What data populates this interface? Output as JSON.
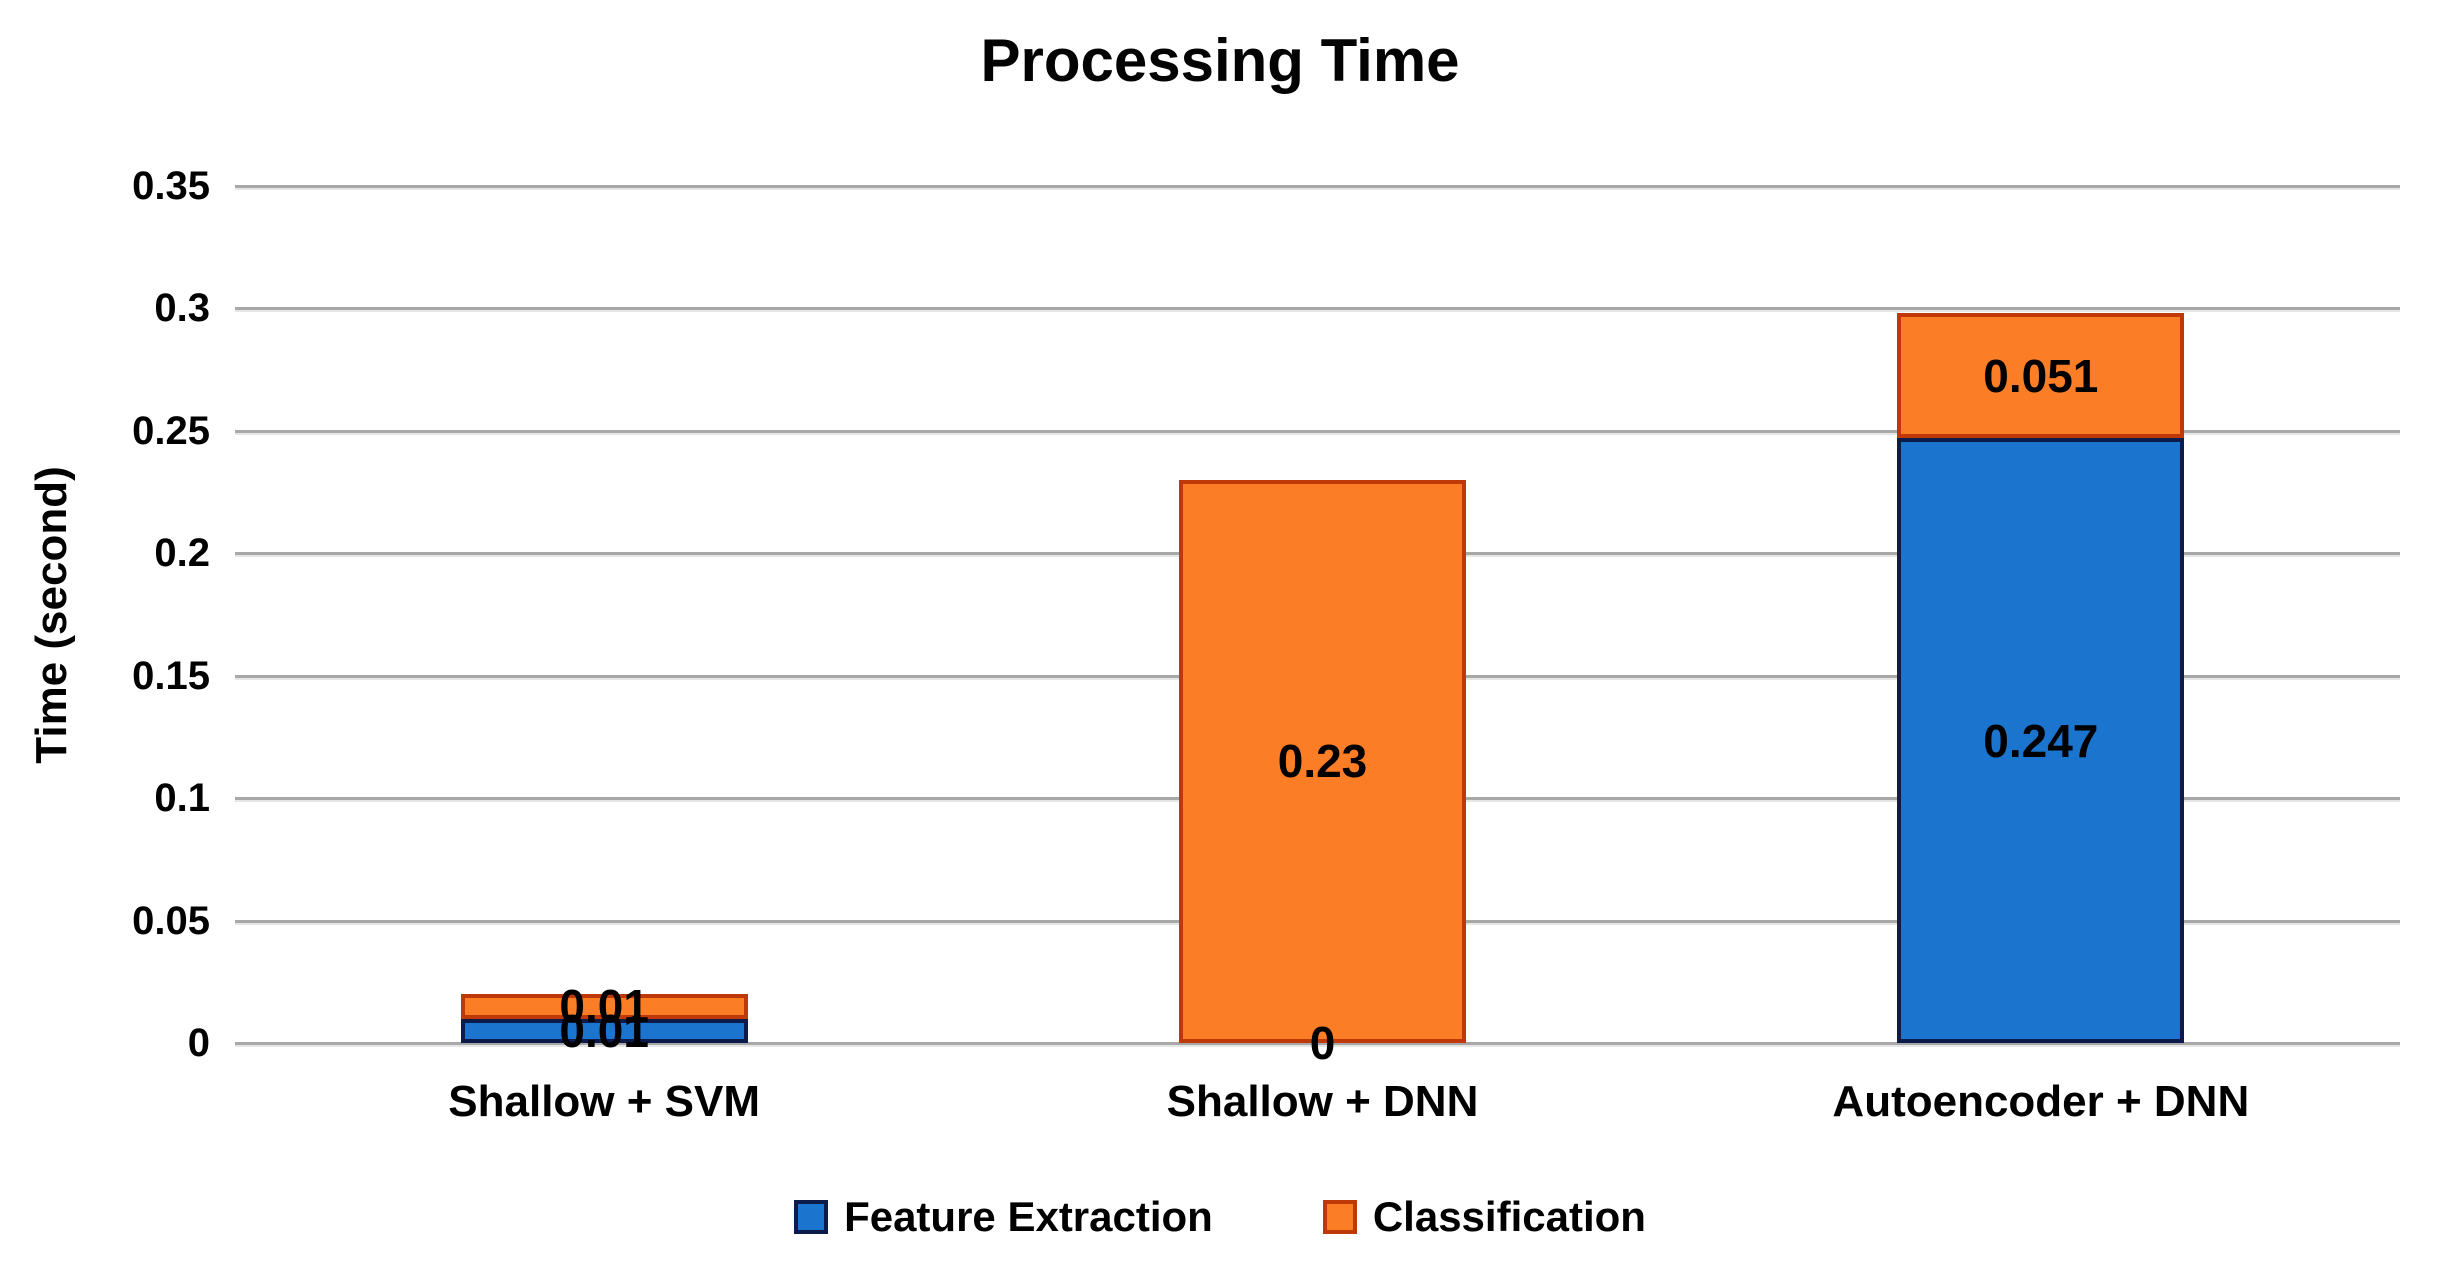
{
  "title": "Processing Time",
  "y_axis": {
    "label": "Time (second)",
    "ticks": [
      "0.35",
      "0.3",
      "0.25",
      "0.2",
      "0.15",
      "0.1",
      "0.05",
      "0"
    ]
  },
  "legend": {
    "items": [
      {
        "label": "Feature Extraction",
        "color": "#1B74CE",
        "border_color": "#0D1B4A"
      },
      {
        "label": "Classification",
        "color": "#FB7E26",
        "border_color": "#BE3808"
      }
    ]
  },
  "chart_data": {
    "type": "bar",
    "stacked": true,
    "title": "Processing Time",
    "xlabel": "",
    "ylabel": "Time (second)",
    "categories": [
      "Shallow + SVM",
      "Shallow + DNN",
      "Autoencoder + DNN"
    ],
    "series": [
      {
        "name": "Feature Extraction",
        "color": "#1B74CE",
        "border_color": "#0D1B4A",
        "values": [
          0.01,
          0,
          0.247
        ],
        "data_labels": [
          "0.01",
          "0",
          "0.247"
        ]
      },
      {
        "name": "Classification",
        "color": "#FB7E26",
        "border_color": "#BE3808",
        "values": [
          0.01,
          0.23,
          0.051
        ],
        "data_labels": [
          "0.01",
          "0.23",
          "0.051"
        ]
      }
    ],
    "ylim": [
      0,
      0.35
    ],
    "ytick_step": 0.05,
    "grid": true,
    "legend_position": "bottom",
    "gridline_color": "#a8a8a8"
  }
}
